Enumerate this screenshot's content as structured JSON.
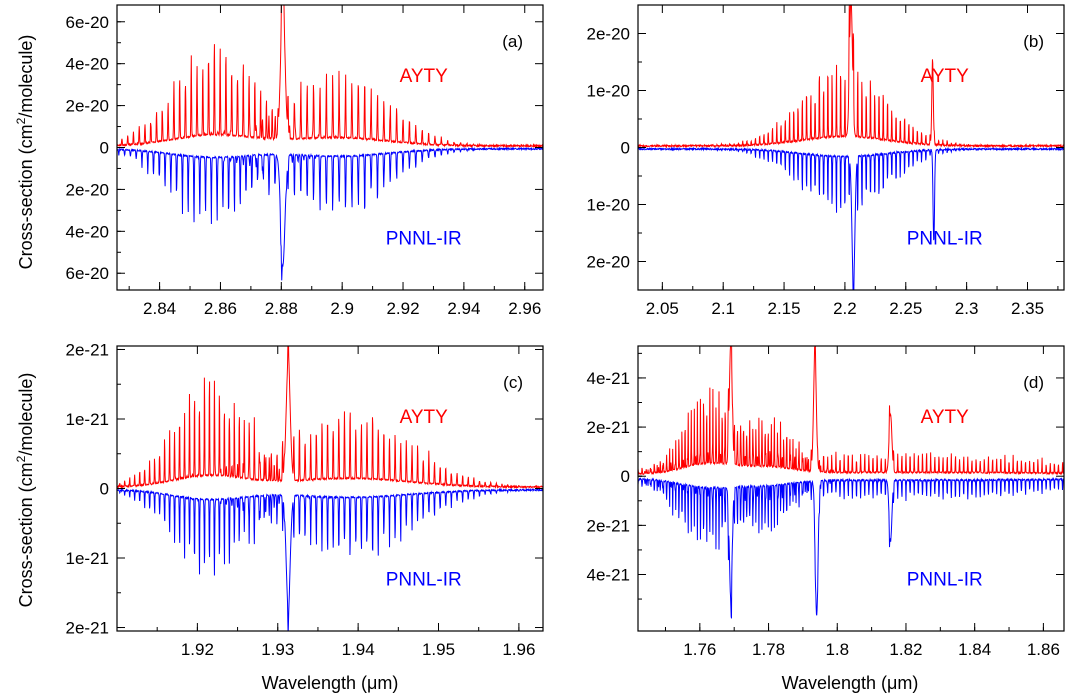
{
  "figure": {
    "ylabel_prefix": "Cross-section (cm",
    "ylabel_sup": "2",
    "ylabel_suffix": "/molecule)",
    "xlabel": "Wavelength (μm)"
  },
  "colors": {
    "aYTY": "#ff0000",
    "pnnl": "#0000ff",
    "axis": "#000000"
  },
  "chart_data": [
    {
      "type": "line",
      "panel": "(a)",
      "series": [
        {
          "name": "AYTY",
          "color": "#ff0000",
          "sign": 1,
          "bands": [
            {
              "center": 2.858,
              "width": 0.0135,
              "peak": 4.3e-20,
              "spacing": 0.0019
            },
            {
              "center": 2.899,
              "width": 0.016,
              "peak": 3.2e-20,
              "spacing": 0.0021
            },
            {
              "center": 2.8805,
              "width": 0.0007,
              "peak": 6.7e-20,
              "spacing": 0
            }
          ]
        },
        {
          "name": "PNNL-IR",
          "color": "#0000ff",
          "sign": -1,
          "bands": [
            {
              "center": 2.857,
              "width": 0.0135,
              "peak": 3.3e-20,
              "spacing": 0.0019
            },
            {
              "center": 2.899,
              "width": 0.016,
              "peak": 2.9e-20,
              "spacing": 0.0021
            },
            {
              "center": 2.8805,
              "width": 0.0007,
              "peak": 5.3e-20,
              "spacing": 0
            }
          ]
        }
      ],
      "xlim": [
        2.826,
        2.966
      ],
      "ylim": [
        -6.8e-20,
        6.8e-20
      ],
      "xticks": [
        2.84,
        2.86,
        2.88,
        2.9,
        2.92,
        2.94,
        2.96
      ],
      "xtick_labels": [
        "2.84",
        "2.86",
        "2.88",
        "2.9",
        "2.92",
        "2.94",
        "2.96"
      ],
      "yticks": [
        6e-20,
        4e-20,
        2e-20,
        0,
        -2e-20,
        -4e-20,
        -6e-20
      ],
      "ytick_labels": [
        "6e-20",
        "4e-20",
        "2e-20",
        "0",
        "2e-20",
        "4e-20",
        "6e-20"
      ],
      "annotations": {
        "top": "AYTY",
        "bottom": "PNNL-IR"
      },
      "show_xlabel": false,
      "show_ylabel": true
    },
    {
      "type": "line",
      "panel": "(b)",
      "series": [
        {
          "name": "AYTY",
          "color": "#ff0000",
          "sign": 1,
          "bands": [
            {
              "center": 2.2,
              "width": 0.035,
              "peak": 1.4e-20,
              "spacing": 0.0035
            },
            {
              "center": 2.205,
              "width": 0.0012,
              "peak": 2.4e-20,
              "spacing": 0
            },
            {
              "center": 2.272,
              "width": 0.0006,
              "peak": 1.5e-20,
              "spacing": 0
            }
          ]
        },
        {
          "name": "PNNL-IR",
          "color": "#0000ff",
          "sign": -1,
          "bands": [
            {
              "center": 2.2,
              "width": 0.035,
              "peak": 1.1e-20,
              "spacing": 0.0035
            },
            {
              "center": 2.207,
              "width": 0.0012,
              "peak": 2.25e-20,
              "spacing": 0
            },
            {
              "center": 2.273,
              "width": 0.0006,
              "peak": 1.6e-20,
              "spacing": 0
            }
          ]
        }
      ],
      "xlim": [
        2.03,
        2.38
      ],
      "ylim": [
        -2.5e-20,
        2.5e-20
      ],
      "xticks": [
        2.05,
        2.1,
        2.15,
        2.2,
        2.25,
        2.3,
        2.35
      ],
      "xtick_labels": [
        "2.05",
        "2.1",
        "2.15",
        "2.2",
        "2.25",
        "2.3",
        "2.35"
      ],
      "yticks": [
        2e-20,
        1e-20,
        0,
        -1e-20,
        -2e-20
      ],
      "ytick_labels": [
        "2e-20",
        "1e-20",
        "0",
        "1e-20",
        "2e-20"
      ],
      "annotations": {
        "top": "AYTY",
        "bottom": "PNNL-IR"
      },
      "show_xlabel": false,
      "show_ylabel": false
    },
    {
      "type": "line",
      "panel": "(c)",
      "series": [
        {
          "name": "AYTY",
          "color": "#ff0000",
          "sign": 1,
          "bands": [
            {
              "center": 1.9215,
              "width": 0.0045,
              "peak": 1.35e-21,
              "spacing": 0.00062
            },
            {
              "center": 1.939,
              "width": 0.0075,
              "peak": 1.05e-21,
              "spacing": 0.0007
            },
            {
              "center": 1.9313,
              "width": 0.00025,
              "peak": 1.7e-21,
              "spacing": 0
            }
          ]
        },
        {
          "name": "PNNL-IR",
          "color": "#0000ff",
          "sign": -1,
          "bands": [
            {
              "center": 1.9215,
              "width": 0.0045,
              "peak": 1.1e-21,
              "spacing": 0.00062
            },
            {
              "center": 1.939,
              "width": 0.0075,
              "peak": 9e-22,
              "spacing": 0.0007
            },
            {
              "center": 1.9313,
              "width": 0.00025,
              "peak": 1.6e-21,
              "spacing": 0
            }
          ]
        }
      ],
      "xlim": [
        1.91,
        1.963
      ],
      "ylim": [
        -2.05e-21,
        2.05e-21
      ],
      "xticks": [
        1.92,
        1.93,
        1.94,
        1.95,
        1.96
      ],
      "xtick_labels": [
        "1.92",
        "1.93",
        "1.94",
        "1.95",
        "1.96"
      ],
      "yticks": [
        2e-21,
        1e-21,
        0,
        -1e-21,
        -2e-21
      ],
      "ytick_labels": [
        "2e-21",
        "1e-21",
        "0",
        "1e-21",
        "2e-21"
      ],
      "annotations": {
        "top": "AYTY",
        "bottom": "PNNL-IR"
      },
      "show_xlabel": true,
      "show_ylabel": true
    },
    {
      "type": "line",
      "panel": "(d)",
      "series": [
        {
          "name": "AYTY",
          "color": "#ff0000",
          "sign": 1,
          "bands": [
            {
              "center": 1.762,
              "width": 0.007,
              "peak": 3.3e-21,
              "spacing": 0.0009
            },
            {
              "center": 1.779,
              "width": 0.008,
              "peak": 2.2e-21,
              "spacing": 0.0009
            },
            {
              "center": 1.82,
              "width": 0.05,
              "peak": 8e-22,
              "spacing": 0.0012
            },
            {
              "center": 1.769,
              "width": 0.0004,
              "peak": 4.9e-21,
              "spacing": 0
            },
            {
              "center": 1.7935,
              "width": 0.0004,
              "peak": 4.8e-21,
              "spacing": 0
            },
            {
              "center": 1.8155,
              "width": 0.0004,
              "peak": 2.4e-21,
              "spacing": 0
            }
          ]
        },
        {
          "name": "PNNL-IR",
          "color": "#0000ff",
          "sign": -1,
          "bands": [
            {
              "center": 1.762,
              "width": 0.008,
              "peak": 2.7e-21,
              "spacing": 0.0009
            },
            {
              "center": 1.779,
              "width": 0.008,
              "peak": 1.9e-21,
              "spacing": 0.0009
            },
            {
              "center": 1.82,
              "width": 0.05,
              "peak": 8e-22,
              "spacing": 0.0012
            },
            {
              "center": 1.769,
              "width": 0.0004,
              "peak": 4.5e-21,
              "spacing": 0
            },
            {
              "center": 1.794,
              "width": 0.0004,
              "peak": 5.5e-21,
              "spacing": 0
            },
            {
              "center": 1.8155,
              "width": 0.0004,
              "peak": 2.5e-21,
              "spacing": 0
            }
          ]
        }
      ],
      "xlim": [
        1.742,
        1.866
      ],
      "ylim": [
        -6.3e-21,
        5.3e-21
      ],
      "xticks": [
        1.76,
        1.78,
        1.8,
        1.82,
        1.84,
        1.86
      ],
      "xtick_labels": [
        "1.76",
        "1.78",
        "1.8",
        "1.82",
        "1.84",
        "1.86"
      ],
      "yticks": [
        4e-21,
        2e-21,
        0,
        -2e-21,
        -4e-21
      ],
      "ytick_labels": [
        "4e-21",
        "2e-21",
        "0",
        "2e-21",
        "4e-21"
      ],
      "annotations": {
        "top": "AYTY",
        "bottom": "PNNL-IR"
      },
      "show_xlabel": true,
      "show_ylabel": false
    }
  ]
}
